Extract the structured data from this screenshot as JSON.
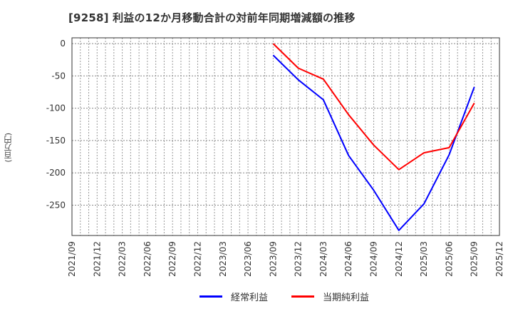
{
  "title": "[9258]  利益の12か月移動合計の対前年同期増減額の推移",
  "chart_data": {
    "type": "line",
    "title": "[9258]  利益の12か月移動合計の対前年同期増減額の推移",
    "xlabel": "",
    "ylabel": "(百万円)",
    "ylim": [
      -297,
      9
    ],
    "yticks": [
      0,
      -50,
      -100,
      -150,
      -200,
      -250
    ],
    "grid": true,
    "legend_position": "bottom",
    "x_tick_labels": [
      "2021/09",
      "2021/12",
      "2022/03",
      "2022/06",
      "2022/09",
      "2022/12",
      "2023/03",
      "2023/06",
      "2023/09",
      "2023/12",
      "2024/03",
      "2024/06",
      "2024/09",
      "2024/12",
      "2025/03",
      "2025/06",
      "2025/09",
      "2025/12"
    ],
    "x": [
      "2023/09",
      "2023/12",
      "2024/03",
      "2024/06",
      "2024/09",
      "2024/12",
      "2025/03",
      "2025/06",
      "2025/09"
    ],
    "series": [
      {
        "name": "経常利益",
        "color": "#0000ff",
        "values": [
          -18,
          -56,
          -87,
          -173,
          -227,
          -289,
          -248,
          -172,
          -67
        ]
      },
      {
        "name": "当期純利益",
        "color": "#ff0000",
        "values": [
          0,
          -38,
          -55,
          -110,
          -157,
          -195,
          -169,
          -161,
          -92
        ]
      }
    ]
  },
  "legend": [
    {
      "label": "経常利益",
      "color": "#0000ff"
    },
    {
      "label": "当期純利益",
      "color": "#ff0000"
    }
  ]
}
